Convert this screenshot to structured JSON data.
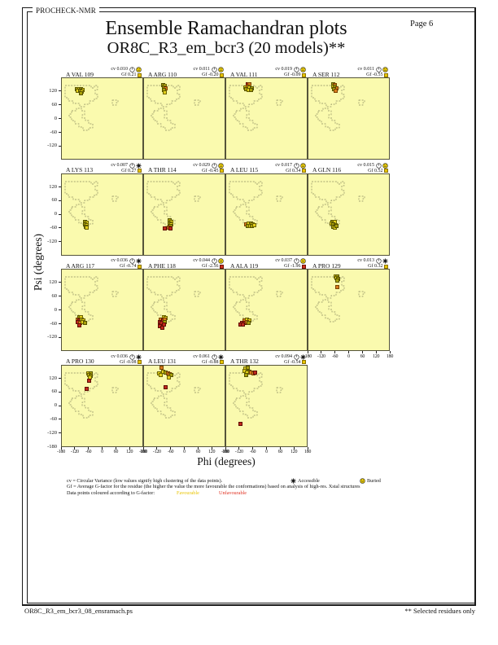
{
  "header": {
    "app_name": "PROCHECK-NMR",
    "page_label": "Page 6"
  },
  "title": {
    "line1": "Ensemble Ramachandran plots",
    "line2": "OR8C_R3_em_bcr3 (20 models)**"
  },
  "axes": {
    "x_label": "Phi (degrees)",
    "y_label": "Psi (degrees)",
    "x_tick_labels": [
      "-180",
      "-120",
      "-60",
      "0",
      "60",
      "120",
      "180"
    ],
    "y_tick_labels": [
      "120",
      "60",
      "0",
      "-60",
      "-120"
    ],
    "y_bottom_label": "-180"
  },
  "legend": {
    "line1_text": "cv = Circular Variance (low values signify high clustering of the data points).",
    "accessible_label": "Accessible",
    "buried_label": "Buried",
    "line2_text": "Gf = Average G-factor for the residue (the higher the value the more favourable the conformations) based on analysis of high-res. Xstal structures",
    "line3_text": "Data points coloured according to G-factor:",
    "favourable_label": "Favourable",
    "unfavourable_label": "Unfavourable"
  },
  "footer": {
    "left": "OR8C_R3_em_bcr3_08_ensramach.ps",
    "right": "** Selected residues only"
  },
  "colors": {
    "plot_background": "#fafaae",
    "contour": "#8a8a60",
    "favourable_swatch": "#e8c400",
    "unfavourable_swatch": "#d03020",
    "point_yellow": "#e3cf1d",
    "point_olive": "#a8a00a",
    "point_orange": "#d97b1f",
    "point_red": "#c0281c"
  },
  "chart_data": {
    "type": "scatter",
    "title": "Ensemble Ramachandran plots",
    "subtitle": "OR8C_R3_em_bcr3 (20 models)**",
    "xlabel": "Phi (degrees)",
    "ylabel": "Psi (degrees)",
    "xlim": [
      -180,
      180
    ],
    "ylim": [
      -180,
      180
    ],
    "grid": false,
    "cv_prefix": "cv",
    "gf_prefix": "Gf",
    "point_legend": {
      "y": "favourable (yellow)",
      "o": "favourable (olive)",
      "g": "less favourable (orange)",
      "r": "unfavourable (red)"
    },
    "plots": [
      {
        "residue": "A VAL 109",
        "row": 0,
        "col": 0,
        "cv": "0.010",
        "gf": "0.21",
        "access": "buried",
        "gf_colour": "favourable",
        "points": [
          [
            -113,
            131,
            "o"
          ],
          [
            -105,
            133,
            "y"
          ],
          [
            -96,
            132,
            "o"
          ],
          [
            -89,
            130,
            "y"
          ],
          [
            -109,
            124,
            "y"
          ],
          [
            -100,
            125,
            "o"
          ],
          [
            -92,
            122,
            "y"
          ],
          [
            -97,
            114,
            "o"
          ]
        ]
      },
      {
        "residue": "A ARG 110",
        "row": 0,
        "col": 1,
        "cv": "0.011",
        "gf": "-0.20",
        "access": "buried",
        "gf_colour": "favourable",
        "points": [
          [
            -95,
            149,
            "o"
          ],
          [
            -89,
            146,
            "y"
          ],
          [
            -94,
            138,
            "o"
          ],
          [
            -87,
            136,
            "g"
          ],
          [
            -91,
            128,
            "o"
          ],
          [
            -89,
            117,
            "y"
          ]
        ]
      },
      {
        "residue": "A VAL 111",
        "row": 0,
        "col": 2,
        "cv": "0.019",
        "gf": "-0.09",
        "access": "buried",
        "gf_colour": "favourable",
        "points": [
          [
            -86,
            152,
            "r"
          ],
          [
            -77,
            153,
            "g"
          ],
          [
            -95,
            140,
            "y"
          ],
          [
            -86,
            141,
            "g"
          ],
          [
            -77,
            139,
            "y"
          ],
          [
            -69,
            137,
            "o"
          ],
          [
            -91,
            131,
            "o"
          ],
          [
            -81,
            129,
            "y"
          ],
          [
            -72,
            127,
            "o"
          ]
        ]
      },
      {
        "residue": "A SER 112",
        "row": 0,
        "col": 3,
        "cv": "0.011",
        "gf": "-0.55",
        "access": "buried",
        "gf_colour": "favourable",
        "points": [
          [
            -70,
            152,
            "o"
          ],
          [
            -63,
            150,
            "g"
          ],
          [
            -72,
            142,
            "y"
          ],
          [
            -63,
            141,
            "o"
          ],
          [
            -56,
            137,
            "g"
          ],
          [
            -67,
            132,
            "o"
          ],
          [
            -61,
            124,
            "g"
          ]
        ]
      },
      {
        "residue": "A LYS 113",
        "row": 1,
        "col": 0,
        "cv": "0.007",
        "gf": "0.27",
        "access": "accessible",
        "gf_colour": "favourable",
        "points": [
          [
            -79,
            -31,
            "o"
          ],
          [
            -72,
            -34,
            "y"
          ],
          [
            -78,
            -42,
            "o"
          ],
          [
            -71,
            -44,
            "y"
          ],
          [
            -75,
            -52,
            "o"
          ],
          [
            -70,
            -57,
            "y"
          ]
        ]
      },
      {
        "residue": "A THR 114",
        "row": 1,
        "col": 1,
        "cv": "0.029",
        "gf": "-0.45",
        "access": "buried",
        "gf_colour": "favourable",
        "points": [
          [
            -66,
            -24,
            "o"
          ],
          [
            -59,
            -29,
            "y"
          ],
          [
            -69,
            -36,
            "o"
          ],
          [
            -61,
            -40,
            "y"
          ],
          [
            -65,
            -47,
            "o"
          ],
          [
            -70,
            -55,
            "g"
          ],
          [
            -88,
            -59,
            "r"
          ],
          [
            -63,
            -60,
            "r"
          ]
        ]
      },
      {
        "residue": "A LEU 115",
        "row": 1,
        "col": 2,
        "cv": "0.017",
        "gf": "0.34",
        "access": "buried",
        "gf_colour": "favourable",
        "points": [
          [
            -93,
            -40,
            "g"
          ],
          [
            -83,
            -37,
            "y"
          ],
          [
            -73,
            -39,
            "o"
          ],
          [
            -64,
            -41,
            "y"
          ],
          [
            -86,
            -47,
            "o"
          ],
          [
            -76,
            -49,
            "y"
          ],
          [
            -66,
            -48,
            "o"
          ],
          [
            -58,
            -44,
            "y"
          ]
        ]
      },
      {
        "residue": "A GLN 116",
        "row": 1,
        "col": 3,
        "cv": "0.015",
        "gf": "0.52",
        "access": "buried",
        "gf_colour": "favourable",
        "points": [
          [
            -74,
            -29,
            "o"
          ],
          [
            -65,
            -31,
            "y"
          ],
          [
            -79,
            -39,
            "y"
          ],
          [
            -70,
            -41,
            "o"
          ],
          [
            -61,
            -44,
            "y"
          ],
          [
            -71,
            -51,
            "o"
          ],
          [
            -63,
            -57,
            "y"
          ],
          [
            -56,
            -49,
            "o"
          ]
        ]
      },
      {
        "residue": "A ARG 117",
        "row": 2,
        "col": 0,
        "cv": "0.036",
        "gf": "-0.74",
        "access": "accessible",
        "gf_colour": "favourable",
        "points": [
          [
            -104,
            -29,
            "o"
          ],
          [
            -95,
            -27,
            "y"
          ],
          [
            -112,
            -39,
            "g"
          ],
          [
            -102,
            -41,
            "r"
          ],
          [
            -92,
            -39,
            "y"
          ],
          [
            -84,
            -41,
            "y"
          ],
          [
            -109,
            -51,
            "r"
          ],
          [
            -99,
            -54,
            "g"
          ],
          [
            -89,
            -51,
            "y"
          ],
          [
            -104,
            -64,
            "r"
          ],
          [
            -80,
            -53,
            "o"
          ]
        ]
      },
      {
        "residue": "A PHE 118",
        "row": 2,
        "col": 1,
        "cv": "0.044",
        "gf": "-2.56",
        "access": "buried",
        "gf_colour": "unfavourable",
        "points": [
          [
            -94,
            -29,
            "y"
          ],
          [
            -85,
            -31,
            "y"
          ],
          [
            -108,
            -39,
            "g"
          ],
          [
            -98,
            -41,
            "r"
          ],
          [
            -88,
            -39,
            "g"
          ],
          [
            -112,
            -51,
            "r"
          ],
          [
            -102,
            -54,
            "r"
          ],
          [
            -90,
            -50,
            "o"
          ],
          [
            -94,
            -61,
            "r"
          ],
          [
            -110,
            -69,
            "r"
          ],
          [
            -100,
            -74,
            "r"
          ]
        ]
      },
      {
        "residue": "A ALA 119",
        "row": 2,
        "col": 2,
        "cv": "0.037",
        "gf": "-1.96",
        "access": "buried",
        "gf_colour": "unfavourable",
        "points": [
          [
            -99,
            -41,
            "g"
          ],
          [
            -89,
            -39,
            "y"
          ],
          [
            -80,
            -44,
            "y"
          ],
          [
            -109,
            -54,
            "r"
          ],
          [
            -99,
            -54,
            "r"
          ],
          [
            -89,
            -51,
            "g"
          ],
          [
            -81,
            -54,
            "o"
          ],
          [
            -117,
            -61,
            "r"
          ],
          [
            -107,
            -61,
            "r"
          ]
        ]
      },
      {
        "residue": "A PRO 129",
        "row": 2,
        "col": 3,
        "cv": "0.013",
        "gf": "0.32",
        "access": "accessible",
        "gf_colour": "favourable",
        "points": [
          [
            -60,
            151,
            "y"
          ],
          [
            -52,
            149,
            "o"
          ],
          [
            -58,
            141,
            "y"
          ],
          [
            -50,
            139,
            "o"
          ],
          [
            -55,
            131,
            "o"
          ],
          [
            -54,
            104,
            "g"
          ]
        ]
      },
      {
        "residue": "A PRO 130",
        "row": 3,
        "col": 0,
        "cv": "0.036",
        "gf": "-0.08",
        "access": "accessible",
        "gf_colour": "favourable",
        "points": [
          [
            -63,
            146,
            "y"
          ],
          [
            -55,
            143,
            "o"
          ],
          [
            -60,
            136,
            "y"
          ],
          [
            -52,
            133,
            "o"
          ],
          [
            -57,
            126,
            "y"
          ],
          [
            -59,
            112,
            "r"
          ],
          [
            -73,
            76,
            "r"
          ]
        ]
      },
      {
        "residue": "A LEU 131",
        "row": 3,
        "col": 1,
        "cv": "0.061",
        "gf": "-0.88",
        "access": "accessible",
        "gf_colour": "favourable",
        "points": [
          [
            -104,
            168,
            "g"
          ],
          [
            -114,
            146,
            "y"
          ],
          [
            -96,
            150,
            "y"
          ],
          [
            -86,
            148,
            "o"
          ],
          [
            -76,
            145,
            "g"
          ],
          [
            -66,
            142,
            "g"
          ],
          [
            -107,
            136,
            "y"
          ],
          [
            -60,
            137,
            "o"
          ],
          [
            -70,
            127,
            "y"
          ],
          [
            -87,
            84,
            "r"
          ]
        ]
      },
      {
        "residue": "A THR 132",
        "row": 3,
        "col": 2,
        "cv": "0.094",
        "gf": "-0.54",
        "access": "accessible",
        "gf_colour": "favourable",
        "points": [
          [
            -95,
            166,
            "y"
          ],
          [
            -85,
            168,
            "o"
          ],
          [
            -100,
            156,
            "y"
          ],
          [
            -78,
            153,
            "o"
          ],
          [
            -88,
            148,
            "y"
          ],
          [
            -70,
            149,
            "g"
          ],
          [
            -61,
            146,
            "g"
          ],
          [
            -53,
            149,
            "r"
          ],
          [
            -92,
            139,
            "o"
          ],
          [
            -117,
            -78,
            "r"
          ]
        ]
      }
    ]
  }
}
